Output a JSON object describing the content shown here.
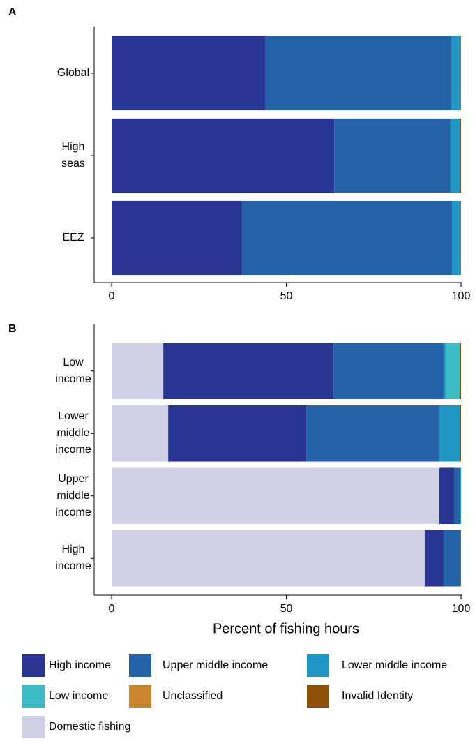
{
  "chart_data": [
    {
      "type": "stacked-barh",
      "panel": "A",
      "categories": [
        "Global",
        "High seas",
        "EEZ"
      ],
      "series": [
        {
          "name": "High income",
          "color": "#283593",
          "values": [
            44,
            63.7,
            37.3
          ]
        },
        {
          "name": "Upper middle income",
          "color": "#2563a8",
          "values": [
            53.2,
            33.3,
            60.1
          ]
        },
        {
          "name": "Lower middle income",
          "color": "#2196c4",
          "values": [
            2.5,
            2.6,
            2.3
          ]
        },
        {
          "name": "Low income",
          "color": "#3dbcc6",
          "values": [
            0.2,
            0,
            0.2
          ]
        },
        {
          "name": "Unclassified",
          "color": "#c8862e",
          "values": [
            0,
            0,
            0
          ]
        },
        {
          "name": "Invalid Identity",
          "color": "#8b4f0a",
          "values": [
            0.1,
            0.4,
            0.1
          ]
        }
      ],
      "xlim": [
        0,
        100
      ],
      "xticks": [
        0,
        50,
        100
      ]
    },
    {
      "type": "stacked-barh",
      "panel": "B",
      "categories": [
        "Low income",
        "Lower middle income",
        "Upper middle income",
        "High income"
      ],
      "series": [
        {
          "name": "Domestic fishing",
          "color": "#d0d1e6",
          "values": [
            14.8,
            16.2,
            93.8,
            89.6
          ]
        },
        {
          "name": "High income",
          "color": "#283593",
          "values": [
            48.7,
            39.5,
            4.2,
            5.4
          ]
        },
        {
          "name": "Upper middle income",
          "color": "#2563a8",
          "values": [
            31.5,
            38.1,
            1.8,
            4.6
          ]
        },
        {
          "name": "Lower middle income",
          "color": "#2196c4",
          "values": [
            0.6,
            6,
            0.2,
            0.3
          ]
        },
        {
          "name": "Low income",
          "color": "#3dbcc6",
          "values": [
            4,
            0,
            0,
            0
          ]
        },
        {
          "name": "Unclassified",
          "color": "#c8862e",
          "values": [
            0,
            0,
            0,
            0
          ]
        },
        {
          "name": "Invalid Identity",
          "color": "#8b4f0a",
          "values": [
            0.4,
            0.2,
            0,
            0.1
          ]
        }
      ],
      "xlim": [
        0,
        100
      ],
      "xticks": [
        0,
        50,
        100
      ],
      "xlabel": "Percent of fishing hours"
    }
  ]
}
